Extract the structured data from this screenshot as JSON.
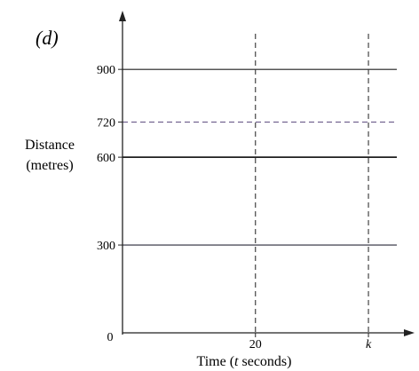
{
  "figure": {
    "part_label": "(d)"
  },
  "chart_data": {
    "type": "line",
    "title": "",
    "xlabel": "Time (t seconds)",
    "xlabel_parts": {
      "pre": "Time (",
      "var": "t",
      "post": " seconds)"
    },
    "ylabel_lines": [
      "Distance",
      "(metres)"
    ],
    "origin_label": "0",
    "x_ticks": [
      {
        "value": 20,
        "label": "20",
        "italic": false
      },
      {
        "value": 37,
        "label": "k",
        "italic": true
      }
    ],
    "y_ticks": [
      {
        "value": 300,
        "label": "300"
      },
      {
        "value": 600,
        "label": "600"
      },
      {
        "value": 720,
        "label": "720"
      },
      {
        "value": 900,
        "label": "900"
      }
    ],
    "xlim": [
      0,
      41
    ],
    "ylim": [
      0,
      1040
    ],
    "grid": false,
    "horizontal_lines": [
      {
        "y": 900,
        "style": "solid",
        "color": "#1f1f1f"
      },
      {
        "y": 720,
        "style": "dashed",
        "color": "#6a5a8a"
      },
      {
        "y": 600,
        "style": "solid",
        "color": "#1f1f1f",
        "weight": "bold"
      },
      {
        "y": 300,
        "style": "solid",
        "color": "#2a2a3a"
      }
    ],
    "vertical_lines": [
      {
        "x": 20,
        "style": "dashed",
        "color": "#333333"
      },
      {
        "x": 37,
        "style": "dashed",
        "color": "#333333"
      }
    ]
  }
}
